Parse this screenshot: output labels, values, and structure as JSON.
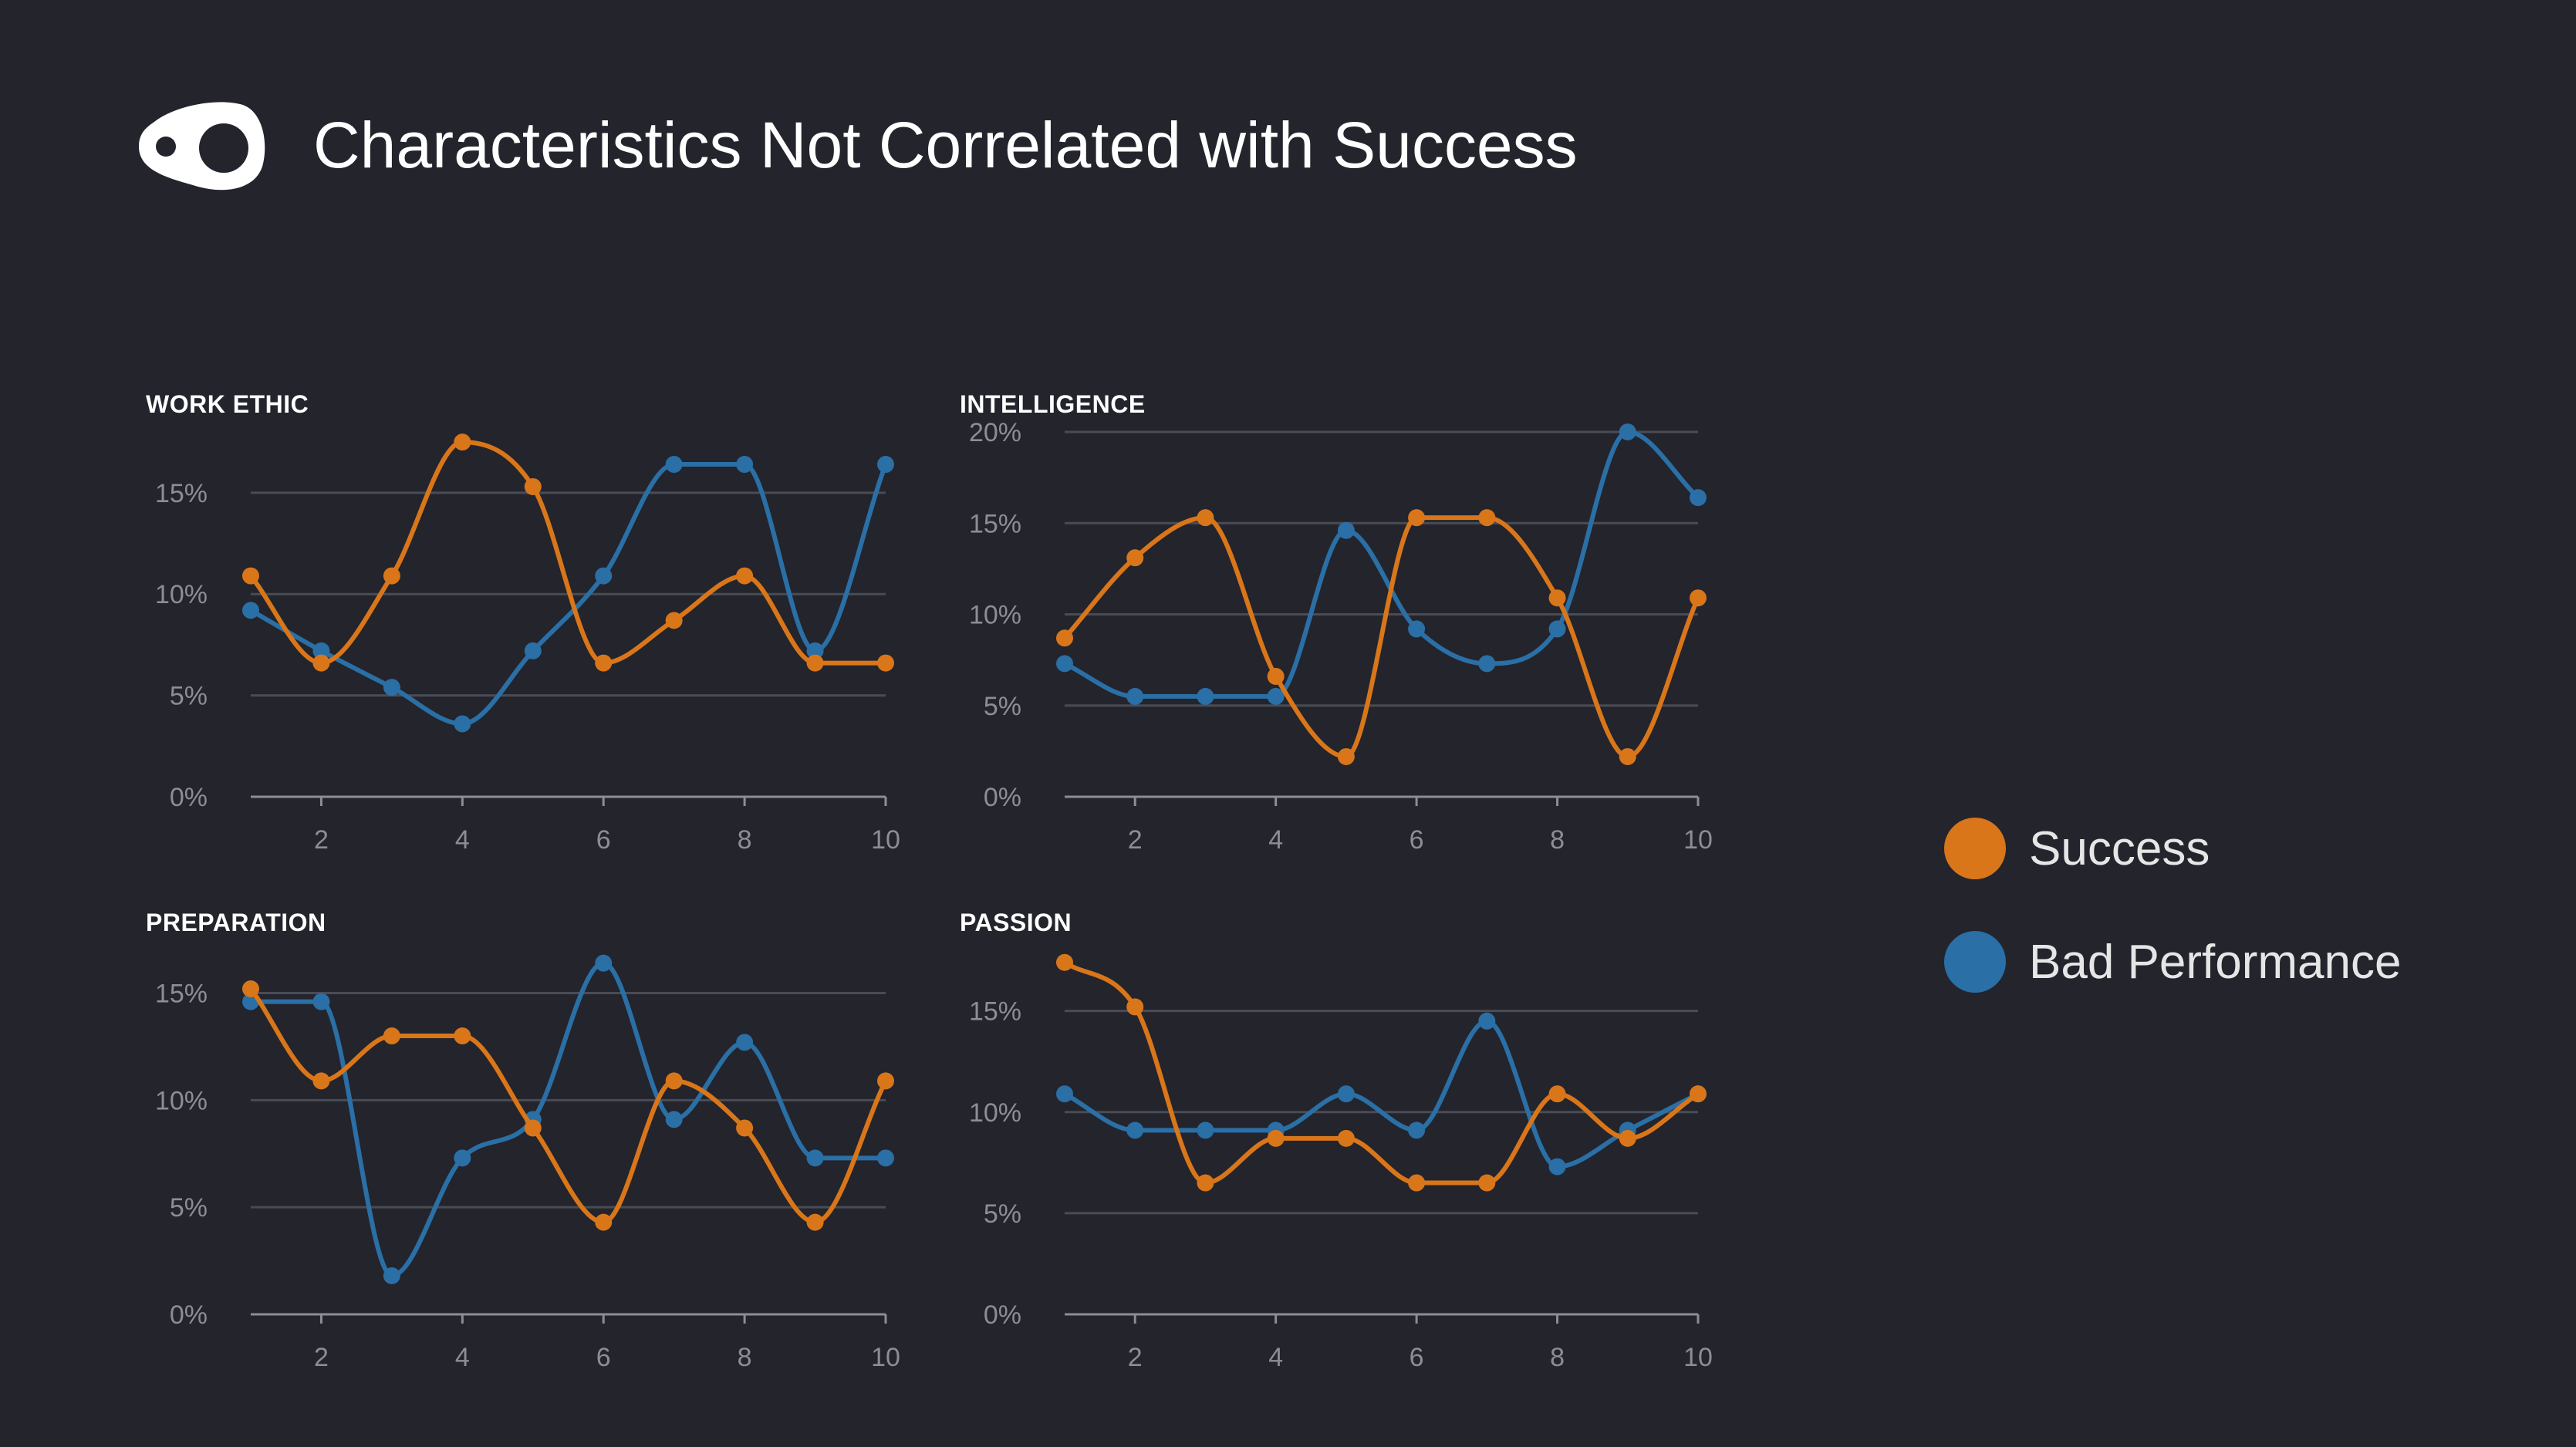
{
  "header": {
    "title": "Characteristics Not Correlated with Success",
    "logo_icon": "eye-shape-logo-icon"
  },
  "colors": {
    "background": "#23242c",
    "success": "#d9761a",
    "bad_performance": "#2a6fa5",
    "grid": "#4a4c55",
    "axis_text": "#8c8e96"
  },
  "legend": {
    "items": [
      {
        "label": "Success",
        "color": "#d9761a"
      },
      {
        "label": "Bad Performance",
        "color": "#2a6fa5"
      }
    ]
  },
  "chart_data": [
    {
      "type": "line",
      "title": "WORK ETHIC",
      "x": [
        1,
        2,
        3,
        4,
        5,
        6,
        7,
        8,
        9,
        10
      ],
      "xticks": [
        2,
        4,
        6,
        8,
        10
      ],
      "ylim": [
        0,
        18
      ],
      "yticks": [
        0,
        5,
        10,
        15
      ],
      "ytick_labels": [
        "0%",
        "5%",
        "10%",
        "15%"
      ],
      "grid": true,
      "series": [
        {
          "name": "Success",
          "values": [
            10.9,
            6.6,
            10.9,
            17.5,
            15.3,
            6.6,
            8.7,
            10.9,
            6.6,
            6.6
          ]
        },
        {
          "name": "Bad Performance",
          "values": [
            9.2,
            7.2,
            5.4,
            3.6,
            7.2,
            10.9,
            16.4,
            16.4,
            7.2,
            16.4
          ]
        }
      ]
    },
    {
      "type": "line",
      "title": "INTELLIGENCE",
      "x": [
        1,
        2,
        3,
        4,
        5,
        6,
        7,
        8,
        9,
        10
      ],
      "xticks": [
        2,
        4,
        6,
        8,
        10
      ],
      "ylim": [
        0,
        20
      ],
      "yticks": [
        0,
        5,
        10,
        15,
        20
      ],
      "ytick_labels": [
        "0%",
        "5%",
        "10%",
        "15%",
        "20%"
      ],
      "grid": true,
      "series": [
        {
          "name": "Success",
          "values": [
            8.7,
            13.1,
            15.3,
            6.6,
            2.2,
            15.3,
            15.3,
            10.9,
            2.2,
            10.9
          ]
        },
        {
          "name": "Bad Performance",
          "values": [
            7.3,
            5.5,
            5.5,
            5.5,
            14.6,
            9.2,
            7.3,
            9.2,
            20.0,
            16.4
          ]
        }
      ]
    },
    {
      "type": "line",
      "title": "PREPARATION",
      "x": [
        1,
        2,
        3,
        4,
        5,
        6,
        7,
        8,
        9,
        10
      ],
      "xticks": [
        2,
        4,
        6,
        8,
        10
      ],
      "ylim": [
        0,
        17
      ],
      "yticks": [
        0,
        5,
        10,
        15
      ],
      "ytick_labels": [
        "0%",
        "5%",
        "10%",
        "15%"
      ],
      "grid": true,
      "series": [
        {
          "name": "Success",
          "values": [
            15.2,
            10.9,
            13.0,
            13.0,
            8.7,
            4.3,
            10.9,
            8.7,
            4.3,
            10.9
          ]
        },
        {
          "name": "Bad Performance",
          "values": [
            14.6,
            14.6,
            1.8,
            7.3,
            9.1,
            16.4,
            9.1,
            12.7,
            7.3,
            7.3
          ]
        }
      ]
    },
    {
      "type": "line",
      "title": "PASSION",
      "x": [
        1,
        2,
        3,
        4,
        5,
        6,
        7,
        8,
        9,
        10
      ],
      "xticks": [
        2,
        4,
        6,
        8,
        10
      ],
      "ylim": [
        0,
        18
      ],
      "yticks": [
        0,
        5,
        10,
        15
      ],
      "ytick_labels": [
        "0%",
        "5%",
        "10%",
        "15%"
      ],
      "grid": true,
      "series": [
        {
          "name": "Success",
          "values": [
            17.4,
            15.2,
            6.5,
            8.7,
            8.7,
            6.5,
            6.5,
            10.9,
            8.7,
            10.9
          ]
        },
        {
          "name": "Bad Performance",
          "values": [
            10.9,
            9.1,
            9.1,
            9.1,
            10.9,
            9.1,
            14.5,
            7.3,
            9.1,
            10.9
          ]
        }
      ]
    }
  ]
}
